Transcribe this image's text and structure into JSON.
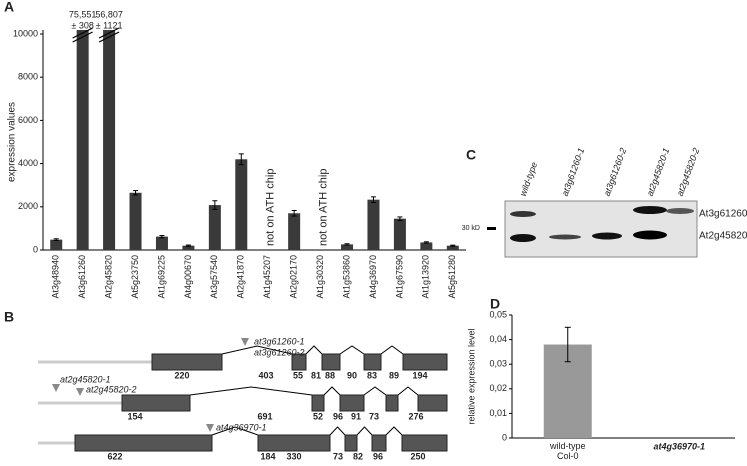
{
  "panel_labels": [
    "A",
    "B",
    "C",
    "D"
  ],
  "chart_data": [
    {
      "type": "bar",
      "y_label": "expression values",
      "categories": [
        "At3g48940",
        "At3g61260",
        "At2g45820",
        "At5g23750",
        "At1g69225",
        "At4g00670",
        "At3g57540",
        "At2g41870",
        "At1g45207",
        "At2g02170",
        "At1g30320",
        "At1g53860",
        "At4g36970",
        "At1g67590",
        "At1g13920",
        "At5g61280"
      ],
      "values": [
        480,
        75551,
        56807,
        2650,
        620,
        200,
        2080,
        4200,
        null,
        1700,
        null,
        260,
        2330,
        1450,
        350,
        200
      ],
      "errors": [
        40,
        308,
        1121,
        100,
        50,
        30,
        200,
        250,
        null,
        130,
        null,
        30,
        130,
        80,
        30,
        25
      ],
      "value_labels": [
        null,
        "75,551",
        "56,807",
        null,
        null,
        null,
        null,
        null,
        null,
        null,
        null,
        null,
        null,
        null,
        null,
        null
      ],
      "error_labels": [
        null,
        "± 308",
        "± 1121",
        null,
        null,
        null,
        null,
        null,
        null,
        null,
        null,
        null,
        null,
        null,
        null,
        null
      ],
      "notes": [
        null,
        null,
        null,
        null,
        null,
        null,
        null,
        null,
        "not on ATH chip",
        null,
        "not on ATH chip",
        null,
        null,
        null,
        null,
        null
      ],
      "color": "#3a3a3a",
      "ylim": [
        0,
        10000
      ],
      "yticks": [
        0,
        2000,
        4000,
        6000,
        8000,
        10000
      ]
    },
    {
      "type": "bar",
      "y_label": "relative expression level",
      "categories": [
        "wild-type\nCol-0",
        "at4g36970-1"
      ],
      "values": [
        0.038,
        0
      ],
      "errors": [
        0.007,
        null
      ],
      "color": "#999999",
      "ylim": [
        0,
        0.05
      ],
      "yticks": [
        0,
        {
          "value": 0.01,
          "label": "0,01"
        },
        {
          "value": 0.02,
          "label": "0,02"
        },
        {
          "value": 0.03,
          "label": "0,03"
        },
        {
          "value": 0.04,
          "label": "0,04"
        },
        {
          "value": 0.05,
          "label": "0,05"
        }
      ]
    }
  ],
  "genes": [
    {
      "segments": [
        220,
        403,
        55,
        81,
        88,
        90,
        83,
        89,
        194
      ],
      "alleles": [
        "at3g61260-1",
        "at3g61260-2"
      ]
    },
    {
      "segments": [
        154,
        691,
        52,
        96,
        91,
        73,
        276
      ],
      "alleles": [
        "at2g45820-1",
        "at2g45820-2"
      ]
    },
    {
      "segments": [
        622,
        184,
        330,
        73,
        82,
        96,
        250
      ],
      "alleles": [
        "at4g36970-1"
      ]
    }
  ],
  "blot": {
    "lanes": [
      "wild-type",
      "at3g61260-1",
      "at3g61260-2",
      "at2g45820-1",
      "at2g45820-2"
    ],
    "marker": "30 kD",
    "bands": [
      "At3g61260",
      "At2g45820"
    ]
  }
}
